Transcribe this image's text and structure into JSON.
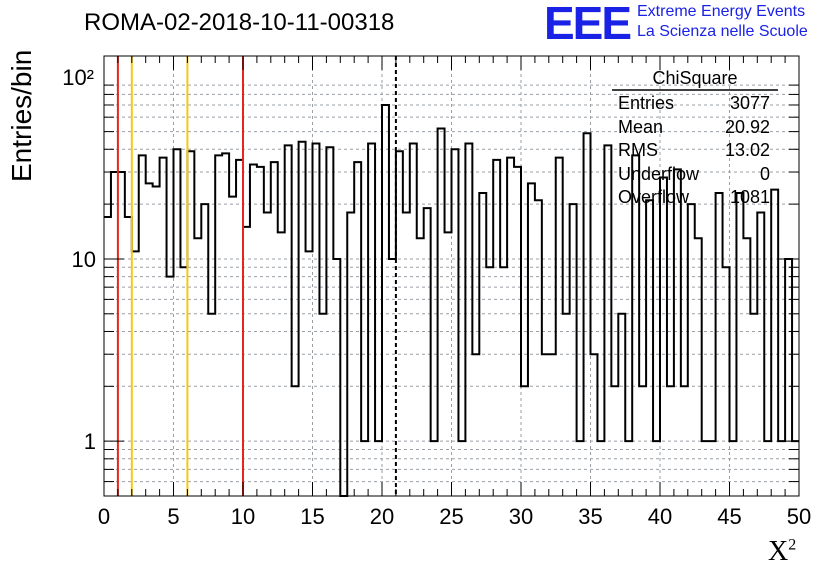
{
  "header": {
    "title": "ROMA-02-2018-10-11-00318",
    "logo_text": "EEE",
    "logo_line1": "Extreme Energy Events",
    "logo_line2": "La Scienza nelle Scuole"
  },
  "stats_box": {
    "name": "ChiSquare",
    "rows": [
      {
        "label": "Entries",
        "value": "3077"
      },
      {
        "label": "Mean",
        "value": "20.92"
      },
      {
        "label": "RMS",
        "value": "13.02"
      },
      {
        "label": "Underflow",
        "value": "0"
      },
      {
        "label": "Overflow",
        "value": "1081"
      }
    ]
  },
  "chart_data": {
    "type": "histogram",
    "title": "ROMA-02-2018-10-11-00318",
    "xlabel": "X²",
    "ylabel": "Entries/bin",
    "xlim": [
      0,
      50
    ],
    "ylim": [
      0.5,
      130
    ],
    "yscale": "log",
    "grid": true,
    "x_ticks": [
      "0",
      "5",
      "10",
      "15",
      "20",
      "25",
      "30",
      "35",
      "40",
      "45",
      "50"
    ],
    "y_ticks": [
      "1",
      "10",
      "10²"
    ],
    "bin_width": 0.5,
    "bin_values": [
      17,
      30,
      30,
      17,
      11,
      37,
      26,
      25,
      36,
      8,
      40,
      9,
      39,
      13,
      20,
      5,
      37,
      38,
      22,
      35,
      15,
      33,
      32,
      18,
      34,
      14,
      42,
      2,
      44,
      11,
      43,
      5,
      41,
      10,
      0,
      18,
      34,
      1,
      43,
      1,
      70,
      10,
      39,
      18,
      43,
      13,
      19,
      1,
      52,
      14,
      40,
      1,
      43,
      3,
      23,
      9,
      35,
      9,
      36,
      32,
      2,
      26,
      21,
      3,
      3,
      36,
      5,
      20,
      1,
      49,
      3,
      1,
      42,
      2,
      5,
      1,
      37,
      2,
      21,
      1,
      28,
      2,
      31,
      2,
      20,
      13,
      1,
      1,
      23,
      9,
      1,
      23,
      13,
      5,
      18,
      1,
      24,
      1,
      10,
      1
    ],
    "vertical_lines": [
      {
        "x": 1,
        "color": "#e8251a",
        "style": "solid"
      },
      {
        "x": 2,
        "color": "#f5c814",
        "style": "solid"
      },
      {
        "x": 6,
        "color": "#f5c814",
        "style": "solid"
      },
      {
        "x": 10,
        "color": "#e8251a",
        "style": "solid"
      },
      {
        "x": 21,
        "color": "#000000",
        "style": "dashed"
      }
    ]
  }
}
